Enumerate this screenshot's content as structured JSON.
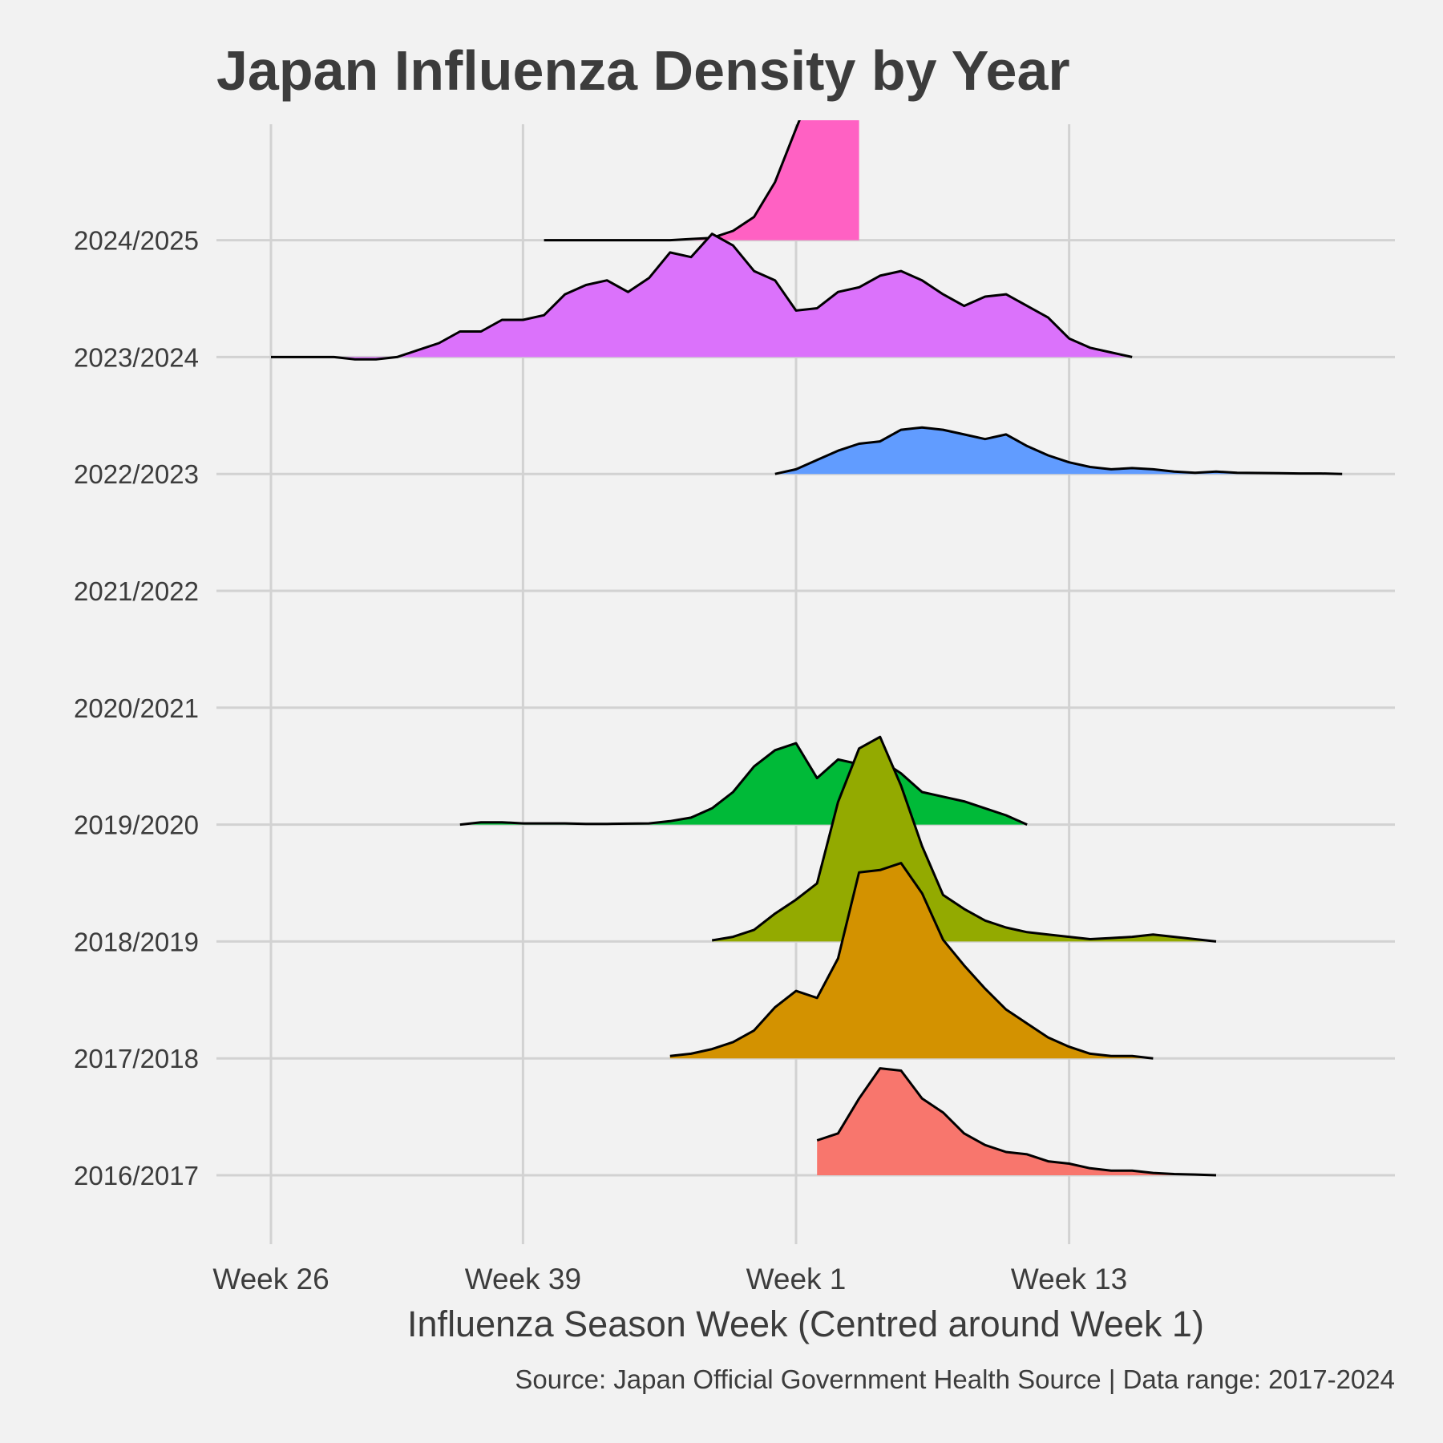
{
  "chart_data": {
    "type": "ridgeline",
    "title": "Japan Influenza Density by Year",
    "xlabel": "Influenza Season Week (Centred around Week 1)",
    "caption": "Source: Japan Official Government Health Source | Data range: 2017-2024",
    "x_ticks": [
      {
        "label": "Week 26",
        "pos": 0
      },
      {
        "label": "Week 39",
        "pos": 12
      },
      {
        "label": "Week 1",
        "pos": 25
      },
      {
        "label": "Week 13",
        "pos": 38
      }
    ],
    "xlim": [
      -3,
      54
    ],
    "x_axis_note": "pos = weeks since season Week 26",
    "series": [
      {
        "name": "2016/2017",
        "color": "#F8766D",
        "points": [
          [
            26,
            0.15
          ],
          [
            27,
            0.18
          ],
          [
            28,
            0.33
          ],
          [
            29,
            0.46
          ],
          [
            30,
            0.45
          ],
          [
            31,
            0.33
          ],
          [
            32,
            0.27
          ],
          [
            33,
            0.18
          ],
          [
            34,
            0.13
          ],
          [
            35,
            0.1
          ],
          [
            36,
            0.09
          ],
          [
            37,
            0.06
          ],
          [
            38,
            0.05
          ],
          [
            39,
            0.03
          ],
          [
            40,
            0.02
          ],
          [
            41,
            0.02
          ],
          [
            42,
            0.01
          ],
          [
            43,
            0.005
          ],
          [
            44,
            0.003
          ],
          [
            45,
            0.0
          ]
        ]
      },
      {
        "name": "2017/2018",
        "color": "#D39200",
        "points": [
          [
            19,
            0.01
          ],
          [
            20,
            0.02
          ],
          [
            21,
            0.04
          ],
          [
            22,
            0.07
          ],
          [
            23,
            0.12
          ],
          [
            24,
            0.22
          ],
          [
            25,
            0.29
          ],
          [
            26,
            0.26
          ],
          [
            27,
            0.43
          ],
          [
            28,
            0.8
          ],
          [
            29,
            0.81
          ],
          [
            30,
            0.84
          ],
          [
            31,
            0.71
          ],
          [
            32,
            0.51
          ],
          [
            33,
            0.4
          ],
          [
            34,
            0.3
          ],
          [
            35,
            0.21
          ],
          [
            36,
            0.15
          ],
          [
            37,
            0.09
          ],
          [
            38,
            0.05
          ],
          [
            39,
            0.02
          ],
          [
            40,
            0.01
          ],
          [
            41,
            0.01
          ],
          [
            42,
            0.0
          ]
        ]
      },
      {
        "name": "2018/2019",
        "color": "#93AA00",
        "points": [
          [
            21,
            0.005
          ],
          [
            22,
            0.02
          ],
          [
            23,
            0.05
          ],
          [
            24,
            0.12
          ],
          [
            25,
            0.18
          ],
          [
            26,
            0.25
          ],
          [
            27,
            0.6
          ],
          [
            28,
            0.83
          ],
          [
            29,
            0.88
          ],
          [
            30,
            0.67
          ],
          [
            31,
            0.41
          ],
          [
            32,
            0.2
          ],
          [
            33,
            0.14
          ],
          [
            34,
            0.09
          ],
          [
            35,
            0.06
          ],
          [
            36,
            0.04
          ],
          [
            37,
            0.03
          ],
          [
            38,
            0.02
          ],
          [
            39,
            0.01
          ],
          [
            40,
            0.015
          ],
          [
            41,
            0.02
          ],
          [
            42,
            0.03
          ],
          [
            43,
            0.02
          ],
          [
            44,
            0.01
          ],
          [
            45,
            0.0
          ]
        ]
      },
      {
        "name": "2019/2020",
        "color": "#00BA38",
        "points": [
          [
            9,
            0.0
          ],
          [
            10,
            0.01
          ],
          [
            11,
            0.01
          ],
          [
            12,
            0.005
          ],
          [
            13,
            0.005
          ],
          [
            14,
            0.005
          ],
          [
            15,
            0.003
          ],
          [
            16,
            0.003
          ],
          [
            17,
            0.004
          ],
          [
            18,
            0.005
          ],
          [
            19,
            0.015
          ],
          [
            20,
            0.03
          ],
          [
            21,
            0.07
          ],
          [
            22,
            0.14
          ],
          [
            23,
            0.25
          ],
          [
            24,
            0.32
          ],
          [
            25,
            0.35
          ],
          [
            26,
            0.2
          ],
          [
            27,
            0.28
          ],
          [
            28,
            0.26
          ],
          [
            29,
            0.28
          ],
          [
            30,
            0.22
          ],
          [
            31,
            0.14
          ],
          [
            32,
            0.12
          ],
          [
            33,
            0.1
          ],
          [
            34,
            0.07
          ],
          [
            35,
            0.04
          ],
          [
            36,
            0.0
          ]
        ]
      },
      {
        "name": "2020/2021",
        "color": "#00C19F",
        "points": []
      },
      {
        "name": "2021/2022",
        "color": "#00B9E3",
        "points": []
      },
      {
        "name": "2022/2023",
        "color": "#619CFF",
        "points": [
          [
            24,
            0.0
          ],
          [
            25,
            0.02
          ],
          [
            26,
            0.06
          ],
          [
            27,
            0.1
          ],
          [
            28,
            0.13
          ],
          [
            29,
            0.14
          ],
          [
            30,
            0.19
          ],
          [
            31,
            0.2
          ],
          [
            32,
            0.19
          ],
          [
            33,
            0.17
          ],
          [
            34,
            0.15
          ],
          [
            35,
            0.17
          ],
          [
            36,
            0.12
          ],
          [
            37,
            0.08
          ],
          [
            38,
            0.05
          ],
          [
            39,
            0.03
          ],
          [
            40,
            0.02
          ],
          [
            41,
            0.025
          ],
          [
            42,
            0.02
          ],
          [
            43,
            0.01
          ],
          [
            44,
            0.005
          ],
          [
            45,
            0.01
          ],
          [
            46,
            0.005
          ],
          [
            47,
            0.004
          ],
          [
            48,
            0.003
          ],
          [
            49,
            0.002
          ],
          [
            50,
            0.002
          ],
          [
            51,
            0.0
          ]
        ]
      },
      {
        "name": "2023/2024",
        "color": "#DB72FB",
        "points": [
          [
            0,
            0.0
          ],
          [
            1,
            0.0
          ],
          [
            2,
            0.0
          ],
          [
            3,
            0.0
          ],
          [
            4,
            -0.01
          ],
          [
            5,
            -0.01
          ],
          [
            6,
            0.0
          ],
          [
            7,
            0.03
          ],
          [
            8,
            0.06
          ],
          [
            9,
            0.11
          ],
          [
            10,
            0.11
          ],
          [
            11,
            0.16
          ],
          [
            12,
            0.16
          ],
          [
            13,
            0.18
          ],
          [
            14,
            0.27
          ],
          [
            15,
            0.31
          ],
          [
            16,
            0.33
          ],
          [
            17,
            0.28
          ],
          [
            18,
            0.34
          ],
          [
            19,
            0.45
          ],
          [
            20,
            0.43
          ],
          [
            21,
            0.53
          ],
          [
            22,
            0.48
          ],
          [
            23,
            0.37
          ],
          [
            24,
            0.33
          ],
          [
            25,
            0.2
          ],
          [
            26,
            0.21
          ],
          [
            27,
            0.28
          ],
          [
            28,
            0.3
          ],
          [
            29,
            0.35
          ],
          [
            30,
            0.37
          ],
          [
            31,
            0.33
          ],
          [
            32,
            0.27
          ],
          [
            33,
            0.22
          ],
          [
            34,
            0.26
          ],
          [
            35,
            0.27
          ],
          [
            36,
            0.22
          ],
          [
            37,
            0.17
          ],
          [
            38,
            0.08
          ],
          [
            39,
            0.04
          ],
          [
            40,
            0.02
          ],
          [
            41,
            0.0
          ]
        ]
      },
      {
        "name": "2024/2025",
        "color": "#FF61C3",
        "points": [
          [
            13,
            0.0
          ],
          [
            14,
            0.0
          ],
          [
            15,
            0.0
          ],
          [
            16,
            0.0
          ],
          [
            17,
            0.0
          ],
          [
            18,
            0.0
          ],
          [
            19,
            0.0
          ],
          [
            20,
            0.005
          ],
          [
            21,
            0.01
          ],
          [
            22,
            0.04
          ],
          [
            23,
            0.1
          ],
          [
            24,
            0.25
          ],
          [
            25,
            0.48
          ],
          [
            26,
            0.7
          ],
          [
            27,
            0.91
          ],
          [
            28,
            1.05
          ]
        ]
      }
    ]
  }
}
